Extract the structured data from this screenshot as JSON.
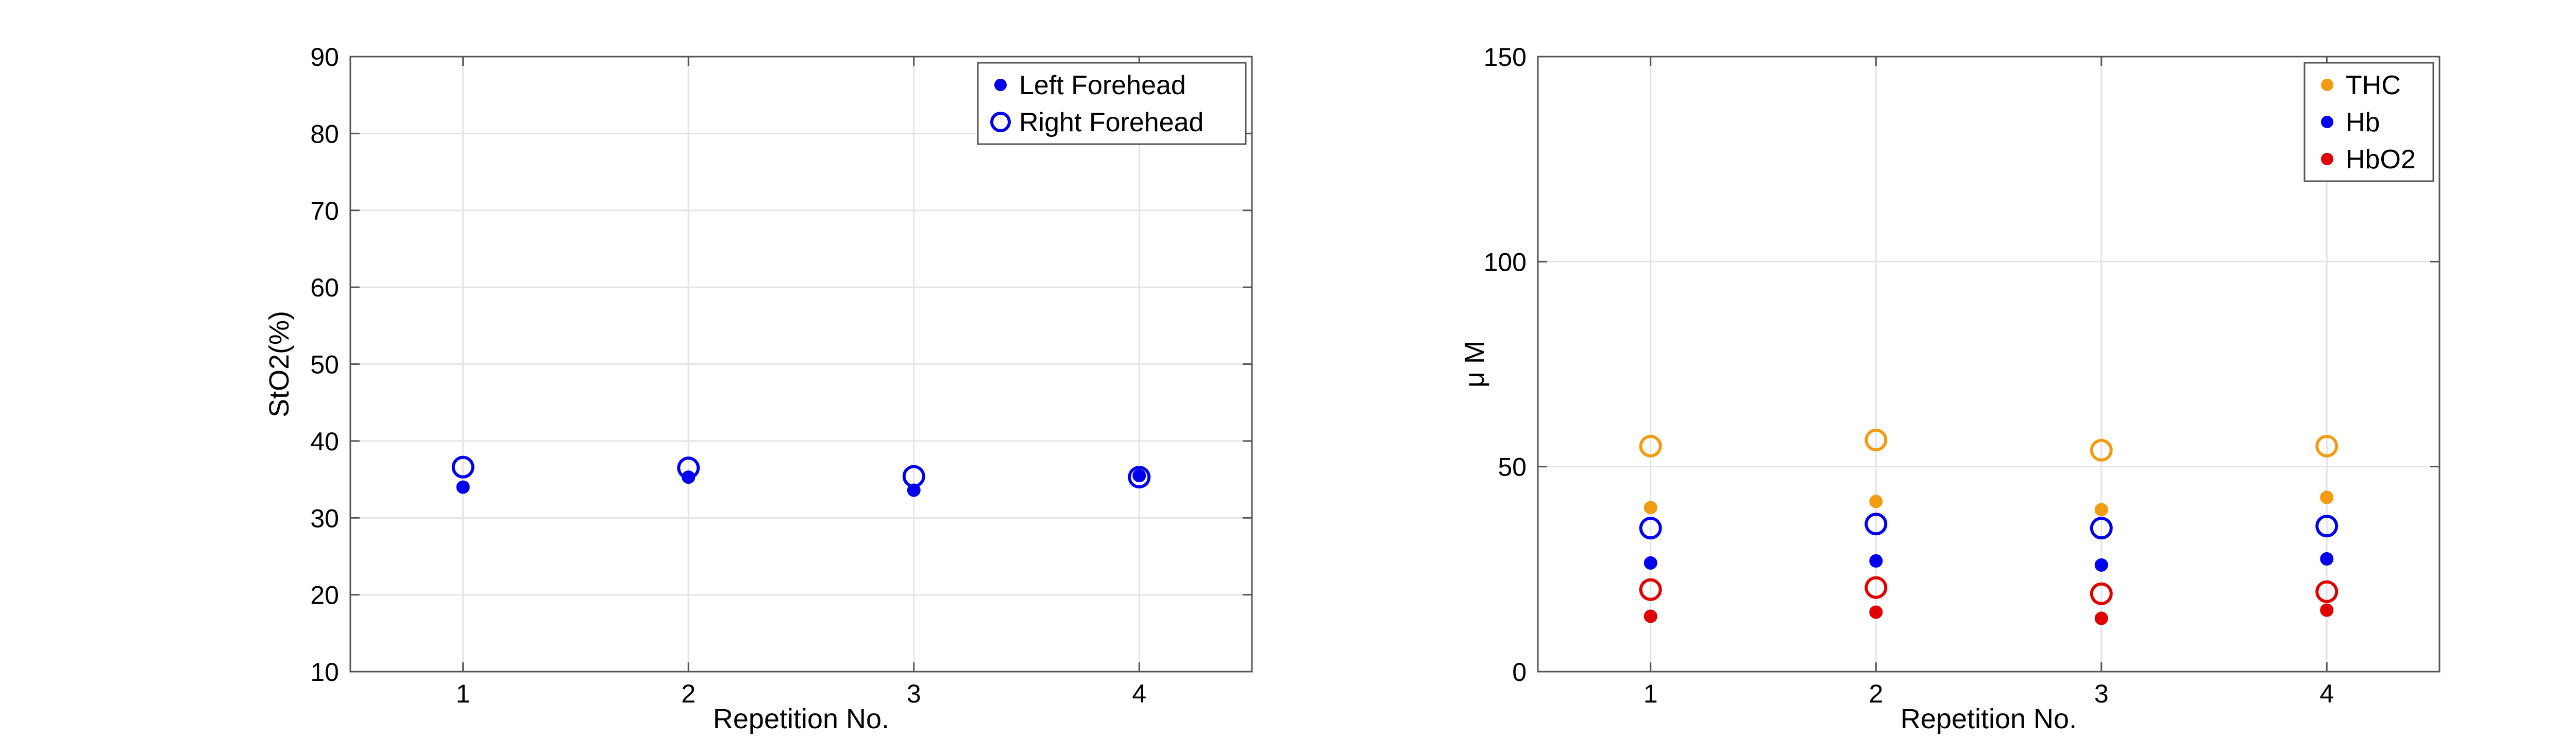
{
  "chart_data": [
    {
      "type": "scatter",
      "title": "",
      "xlabel": "Repetition No.",
      "ylabel": "StO2(%)",
      "xlim": [
        0.5,
        4.5
      ],
      "ylim": [
        10,
        90
      ],
      "xticks": [
        "1",
        "2",
        "3",
        "4"
      ],
      "yticks": [
        "10",
        "20",
        "30",
        "40",
        "50",
        "60",
        "70",
        "80",
        "90"
      ],
      "grid": true,
      "legend_position": "top-right",
      "x": [
        1,
        2,
        3,
        4
      ],
      "series": [
        {
          "name": "Left Forehead",
          "marker": "filled",
          "color": "#0000ee",
          "values": [
            34.0,
            35.3,
            33.6,
            35.5
          ]
        },
        {
          "name": "Right Forehead",
          "marker": "open",
          "color": "#0000ee",
          "values": [
            36.6,
            36.5,
            35.4,
            35.3
          ]
        }
      ]
    },
    {
      "type": "scatter",
      "title": "",
      "xlabel": "Repetition No.",
      "ylabel": "μ M",
      "xlim": [
        0.5,
        4.5
      ],
      "ylim": [
        0,
        150
      ],
      "xticks": [
        "1",
        "2",
        "3",
        "4"
      ],
      "yticks": [
        "0",
        "50",
        "100",
        "150"
      ],
      "grid": true,
      "legend_position": "top-right",
      "x": [
        1,
        2,
        3,
        4
      ],
      "series": [
        {
          "name": "THC",
          "marker": "filled",
          "color": "#f39c12",
          "values": [
            40.0,
            41.5,
            39.5,
            42.5
          ]
        },
        {
          "name": "Hb",
          "marker": "filled",
          "color": "#0000ee",
          "values": [
            26.5,
            27.0,
            26.0,
            27.5
          ]
        },
        {
          "name": "HbO2",
          "marker": "filled",
          "color": "#e00000",
          "values": [
            13.5,
            14.5,
            13.0,
            15.0
          ]
        },
        {
          "marker": "open",
          "color": "#f39c12",
          "values": [
            55.0,
            56.5,
            54.0,
            55.0
          ]
        },
        {
          "marker": "open",
          "color": "#0000ee",
          "values": [
            35.0,
            36.0,
            35.0,
            35.5
          ]
        },
        {
          "marker": "open",
          "color": "#e00000",
          "values": [
            20.0,
            20.5,
            19.0,
            19.5
          ]
        }
      ]
    }
  ]
}
